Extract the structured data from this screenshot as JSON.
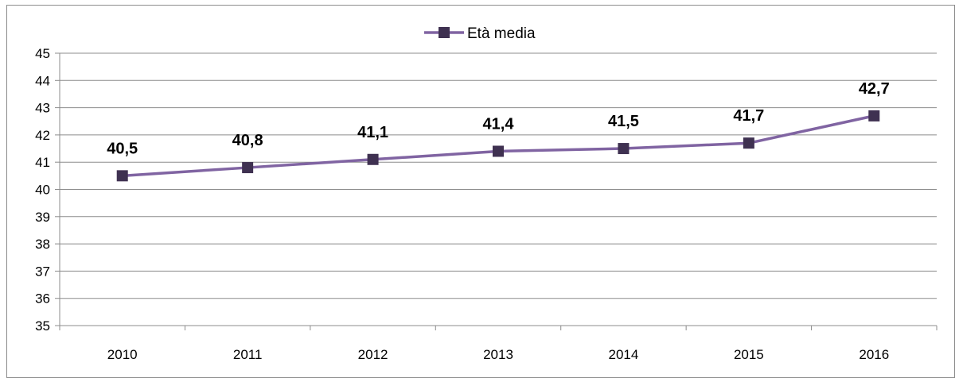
{
  "chart_data": {
    "type": "line",
    "categories": [
      "2010",
      "2011",
      "2012",
      "2013",
      "2014",
      "2015",
      "2016"
    ],
    "series": [
      {
        "name": "Età media",
        "values": [
          40.5,
          40.8,
          41.1,
          41.4,
          41.5,
          41.7,
          42.7
        ],
        "labels": [
          "40,5",
          "40,8",
          "41,1",
          "41,4",
          "41,5",
          "41,7",
          "42,7"
        ],
        "color": "#8064a2",
        "marker_color": "#3f3151"
      }
    ],
    "ylim": [
      35,
      45
    ],
    "yticks": [
      35,
      36,
      37,
      38,
      39,
      40,
      41,
      42,
      43,
      44,
      45
    ],
    "grid": true,
    "legend": "top-center",
    "title": "",
    "xlabel": "",
    "ylabel": ""
  }
}
